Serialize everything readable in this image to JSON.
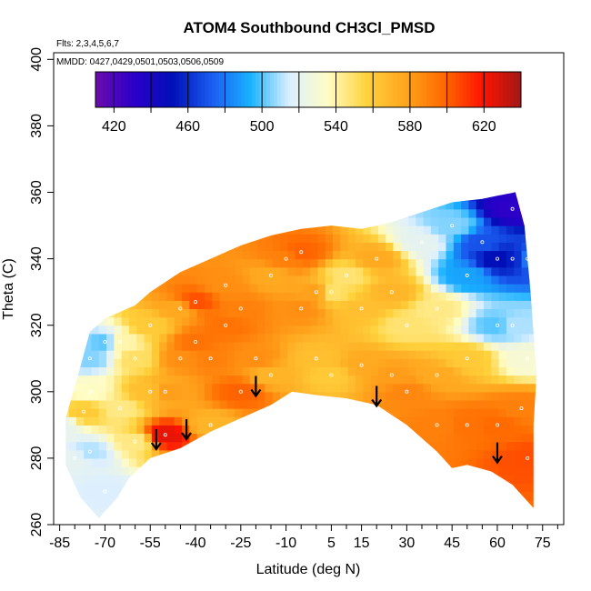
{
  "chart_data": {
    "type": "heatmap",
    "title": "ATOM4 Southbound CH3Cl_PMSD",
    "flights_label": "Flts: 2,3,4,5,6,7",
    "dates_label": "MMDD: 0427,0429,0501,0503,0506,0509",
    "xlabel": "Latitude (deg N)",
    "ylabel": "Theta (C)",
    "xlim": [
      -87,
      82
    ],
    "ylim": [
      260,
      402
    ],
    "x_ticks": [
      -85,
      -70,
      -55,
      -40,
      -25,
      -10,
      5,
      15,
      30,
      45,
      60,
      75
    ],
    "y_ticks": [
      260,
      280,
      300,
      320,
      340,
      360,
      380,
      400
    ],
    "colorbar": {
      "min": 410,
      "max": 640,
      "ticks": [
        420,
        460,
        500,
        540,
        580,
        620
      ],
      "colors": [
        "#6a0dad",
        "#2a00c8",
        "#0010b8",
        "#1a5cf0",
        "#19b2ff",
        "#dcefff",
        "#fffcc4",
        "#ffd23c",
        "#ffa51e",
        "#ff6a00",
        "#ff1400",
        "#a01818"
      ]
    },
    "upper_boundary": [
      [
        -83,
        292
      ],
      [
        -78,
        308
      ],
      [
        -75,
        318
      ],
      [
        -70,
        322
      ],
      [
        -60,
        326
      ],
      [
        -55,
        330
      ],
      [
        -45,
        336
      ],
      [
        -35,
        340
      ],
      [
        -25,
        344
      ],
      [
        -15,
        347
      ],
      [
        -5,
        349
      ],
      [
        5,
        350
      ],
      [
        15,
        349
      ],
      [
        25,
        351
      ],
      [
        35,
        354
      ],
      [
        45,
        357
      ],
      [
        55,
        358
      ],
      [
        60,
        359
      ],
      [
        66,
        360
      ],
      [
        69,
        350
      ],
      [
        71,
        330
      ],
      [
        73,
        305
      ],
      [
        72,
        290
      ],
      [
        72,
        265
      ]
    ],
    "lower_boundary": [
      [
        72,
        265
      ],
      [
        65,
        272
      ],
      [
        58,
        276
      ],
      [
        50,
        278
      ],
      [
        45,
        277
      ],
      [
        40,
        282
      ],
      [
        30,
        290
      ],
      [
        20,
        296
      ],
      [
        10,
        298
      ],
      [
        0,
        299
      ],
      [
        -8,
        300
      ],
      [
        -15,
        296
      ],
      [
        -25,
        292
      ],
      [
        -35,
        288
      ],
      [
        -45,
        283
      ],
      [
        -55,
        280
      ],
      [
        -62,
        274
      ],
      [
        -66,
        268
      ],
      [
        -72,
        262
      ],
      [
        -78,
        268
      ],
      [
        -83,
        278
      ]
    ],
    "cells": [
      [
        -85,
        290,
        520
      ],
      [
        -75,
        300,
        535
      ],
      [
        -75,
        282,
        510
      ],
      [
        -70,
        270,
        515
      ],
      [
        -70,
        315,
        500
      ],
      [
        -75,
        310,
        505
      ],
      [
        -80,
        280,
        520
      ],
      [
        -77,
        294,
        560
      ],
      [
        -65,
        315,
        540
      ],
      [
        -65,
        295,
        545
      ],
      [
        -60,
        310,
        550
      ],
      [
        -60,
        285,
        545
      ],
      [
        -55,
        300,
        565
      ],
      [
        -55,
        320,
        560
      ],
      [
        -50,
        300,
        580
      ],
      [
        -50,
        287,
        625
      ],
      [
        -45,
        310,
        585
      ],
      [
        -45,
        325,
        575
      ],
      [
        -40,
        315,
        595
      ],
      [
        -40,
        327,
        605
      ],
      [
        -35,
        310,
        590
      ],
      [
        -35,
        290,
        570
      ],
      [
        -30,
        320,
        595
      ],
      [
        -30,
        332,
        585
      ],
      [
        -25,
        325,
        590
      ],
      [
        -25,
        300,
        600
      ],
      [
        -20,
        310,
        585
      ],
      [
        -15,
        335,
        575
      ],
      [
        -15,
        305,
        570
      ],
      [
        -10,
        340,
        590
      ],
      [
        -5,
        342,
        600
      ],
      [
        -5,
        325,
        585
      ],
      [
        0,
        330,
        580
      ],
      [
        0,
        310,
        565
      ],
      [
        5,
        330,
        548
      ],
      [
        5,
        305,
        560
      ],
      [
        10,
        335,
        548
      ],
      [
        15,
        325,
        565
      ],
      [
        15,
        308,
        575
      ],
      [
        20,
        340,
        575
      ],
      [
        25,
        330,
        570
      ],
      [
        25,
        305,
        580
      ],
      [
        30,
        320,
        548
      ],
      [
        30,
        300,
        588
      ],
      [
        35,
        345,
        520
      ],
      [
        40,
        325,
        545
      ],
      [
        40,
        305,
        575
      ],
      [
        40,
        290,
        590
      ],
      [
        45,
        350,
        505
      ],
      [
        50,
        335,
        490
      ],
      [
        50,
        310,
        560
      ],
      [
        50,
        290,
        595
      ],
      [
        55,
        345,
        470
      ],
      [
        60,
        340,
        450
      ],
      [
        60,
        320,
        500
      ],
      [
        60,
        290,
        598
      ],
      [
        65,
        355,
        430
      ],
      [
        65,
        340,
        455
      ],
      [
        65,
        320,
        510
      ],
      [
        70,
        340,
        480
      ],
      [
        70,
        310,
        530
      ],
      [
        70,
        280,
        605
      ],
      [
        68,
        295,
        590
      ]
    ],
    "arrows": [
      [
        -53,
        286
      ],
      [
        -43,
        289
      ],
      [
        -20,
        302
      ],
      [
        20,
        299
      ],
      [
        60,
        282
      ]
    ]
  }
}
